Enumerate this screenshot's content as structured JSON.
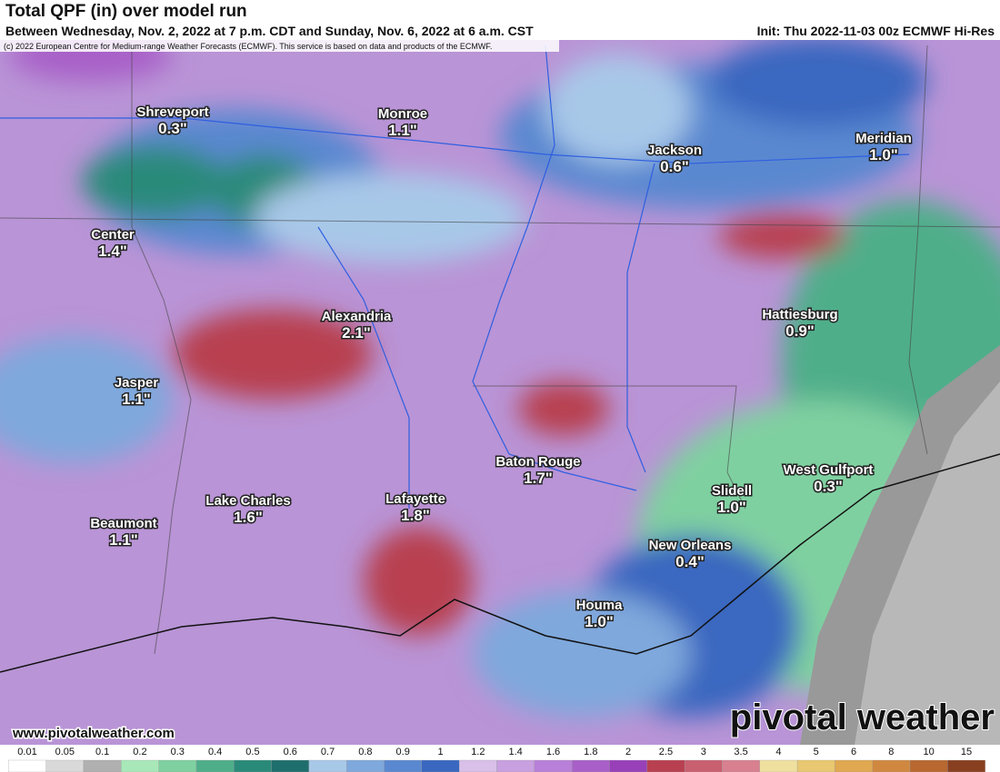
{
  "header": {
    "title": "Total QPF (in) over model run",
    "subtitle": "Between Wednesday, Nov. 2, 2022 at 7 p.m. CDT and Sunday, Nov. 6, 2022 at 6 a.m. CST",
    "init": "Init: Thu 2022-11-03 00z ECMWF Hi-Res",
    "copyright": "(c) 2022 European Centre for Medium-range Weather Forecasts (ECMWF). This service is based on data and products of the ECMWF."
  },
  "map": {
    "cities": [
      {
        "name": "Shreveport",
        "value": "0.3\""
      },
      {
        "name": "Monroe",
        "value": "1.1\""
      },
      {
        "name": "Jackson",
        "value": "0.6\""
      },
      {
        "name": "Meridian",
        "value": "1.0\""
      },
      {
        "name": "Center",
        "value": "1.4\""
      },
      {
        "name": "Alexandria",
        "value": "2.1\""
      },
      {
        "name": "Hattiesburg",
        "value": "0.9\""
      },
      {
        "name": "Jasper",
        "value": "1.1\""
      },
      {
        "name": "Baton Rouge",
        "value": "1.7\""
      },
      {
        "name": "West Gulfport",
        "value": "0.3\""
      },
      {
        "name": "Slidell",
        "value": "1.0\""
      },
      {
        "name": "Lake Charles",
        "value": "1.6\""
      },
      {
        "name": "Lafayette",
        "value": "1.8\""
      },
      {
        "name": "Beaumont",
        "value": "1.1\""
      },
      {
        "name": "New Orleans",
        "value": "0.4\""
      },
      {
        "name": "Houma",
        "value": "1.0\""
      }
    ]
  },
  "footer": {
    "website": "www.pivotalweather.com",
    "logo": "pivotal weather"
  },
  "legend": {
    "labels": [
      "0.01",
      "0.05",
      "0.1",
      "0.2",
      "0.3",
      "0.4",
      "0.5",
      "0.6",
      "0.7",
      "0.8",
      "0.9",
      "1",
      "1.2",
      "1.4",
      "1.6",
      "1.8",
      "2",
      "2.5",
      "3",
      "3.5",
      "4",
      "5",
      "6",
      "8",
      "10",
      "15"
    ],
    "colors": [
      "#ffffff",
      "#d9d9d9",
      "#b0b0b0",
      "#a8e8b8",
      "#7fd0a0",
      "#4fae8a",
      "#2a8a7a",
      "#1f6e6e",
      "#a8c8e8",
      "#7fa8dc",
      "#5a88d0",
      "#3a68c0",
      "#d8c0e8",
      "#c8a0e0",
      "#b880d8",
      "#a860c8",
      "#9840b8",
      "#b84050",
      "#c86070",
      "#d88090",
      "#f0e0a0",
      "#e8c870",
      "#e0a850",
      "#d08840",
      "#b86830",
      "#884020"
    ]
  }
}
